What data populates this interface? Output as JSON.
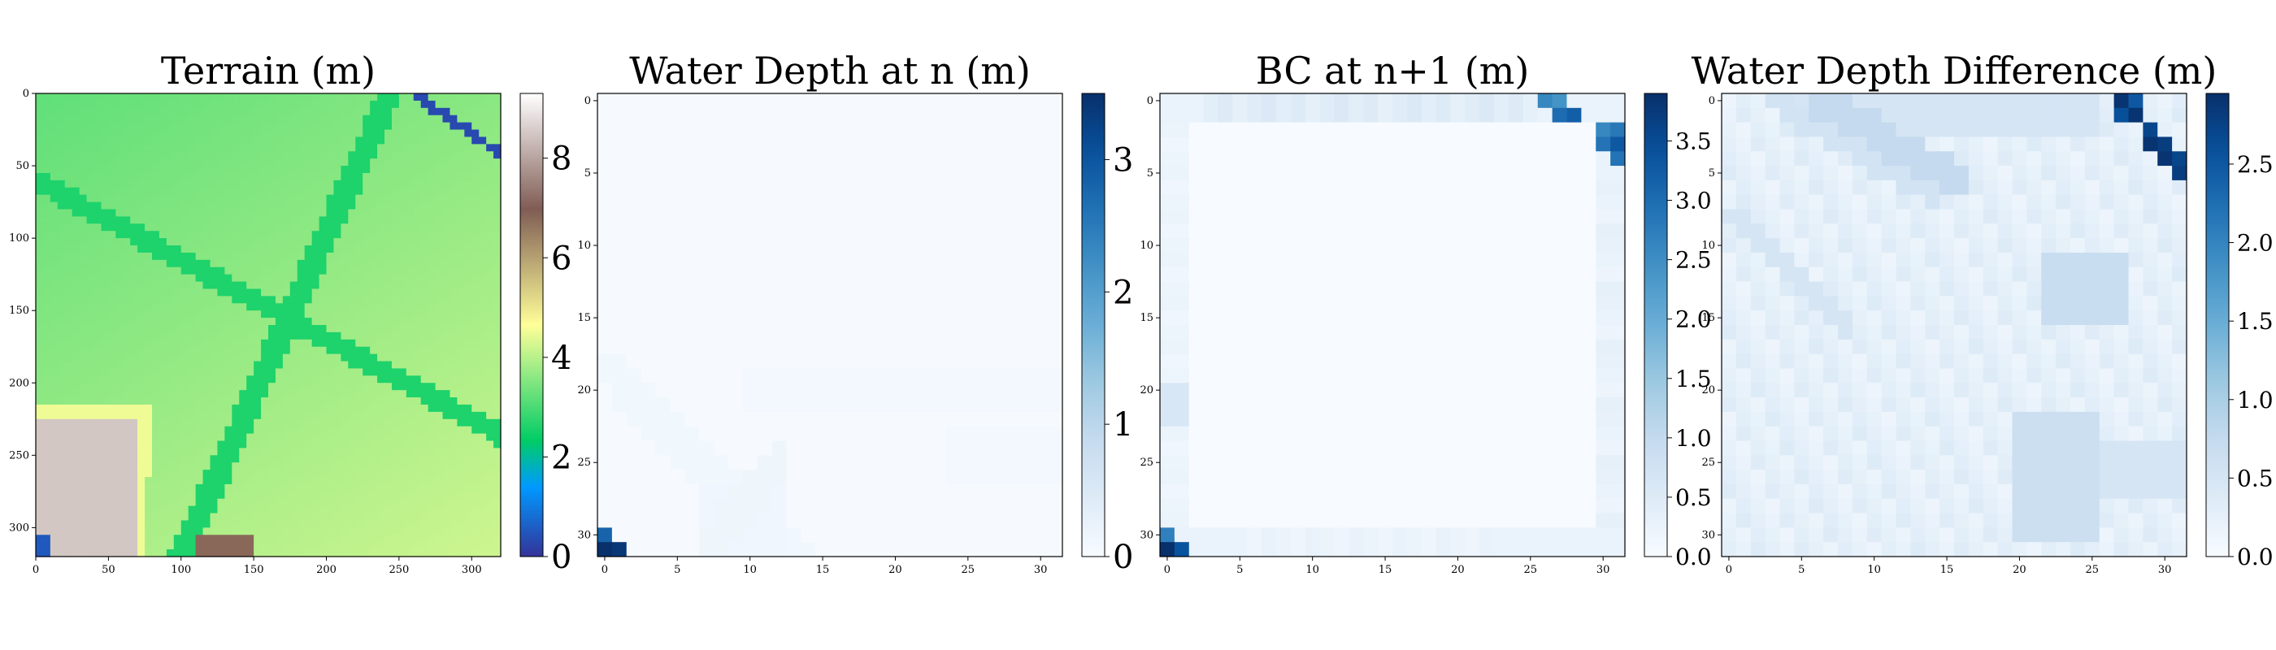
{
  "chart_data": [
    {
      "type": "heatmap",
      "title": "Terrain (m)",
      "colormap": "terrain",
      "grid": "off",
      "x_ticks": [
        "0",
        "50",
        "100",
        "150",
        "200",
        "250",
        "300"
      ],
      "y_ticks": [
        "0",
        "50",
        "100",
        "150",
        "200",
        "250",
        "300"
      ],
      "x_range": [
        0,
        320
      ],
      "y_range": [
        0,
        320
      ],
      "colorbar": {
        "ticks": [
          "0",
          "2",
          "4",
          "6",
          "8"
        ],
        "range": [
          0,
          9.3
        ]
      },
      "features": {
        "base_elevation": 3.2,
        "roads_elevation": 2.6,
        "high_southeast": 4.3,
        "building_southwest_top": 8.5,
        "water_channel_northeast": 0.3
      }
    },
    {
      "type": "heatmap",
      "title": "Water Depth at n (m)",
      "colormap": "Blues",
      "grid": "off",
      "x_ticks": [
        "0",
        "5",
        "10",
        "15",
        "20",
        "25",
        "30"
      ],
      "y_ticks": [
        "0",
        "5",
        "10",
        "15",
        "20",
        "25",
        "30"
      ],
      "grid_size": 32,
      "colorbar": {
        "ticks": [
          "0",
          "1",
          "2",
          "3"
        ],
        "range": [
          0,
          3.5
        ]
      },
      "high_cells": [
        {
          "row": 30,
          "col": 0,
          "value": 2.8
        },
        {
          "row": 31,
          "col": 0,
          "value": 3.5
        },
        {
          "row": 31,
          "col": 1,
          "value": 3.4
        }
      ],
      "background_value": 0.02
    },
    {
      "type": "heatmap",
      "title": "BC at n+1 (m)",
      "colormap": "Blues",
      "grid": "off",
      "x_ticks": [
        "0",
        "5",
        "10",
        "15",
        "20",
        "25",
        "30"
      ],
      "y_ticks": [
        "0",
        "5",
        "10",
        "15",
        "20",
        "25",
        "30"
      ],
      "grid_size": 32,
      "colorbar": {
        "ticks": [
          "0.0",
          "0.5",
          "1.0",
          "1.5",
          "2.0",
          "2.5",
          "3.0",
          "3.5"
        ],
        "range": [
          0,
          3.9
        ]
      },
      "high_cells": [
        {
          "row": 0,
          "col": 26,
          "value": 2.6
        },
        {
          "row": 0,
          "col": 27,
          "value": 2.4
        },
        {
          "row": 1,
          "col": 27,
          "value": 3.0
        },
        {
          "row": 1,
          "col": 28,
          "value": 3.2
        },
        {
          "row": 2,
          "col": 30,
          "value": 2.6
        },
        {
          "row": 2,
          "col": 31,
          "value": 2.8
        },
        {
          "row": 3,
          "col": 30,
          "value": 2.9
        },
        {
          "row": 3,
          "col": 31,
          "value": 3.3
        },
        {
          "row": 4,
          "col": 31,
          "value": 2.9
        },
        {
          "row": 30,
          "col": 0,
          "value": 2.7
        },
        {
          "row": 31,
          "col": 0,
          "value": 3.9
        },
        {
          "row": 31,
          "col": 1,
          "value": 3.4
        }
      ],
      "boundary_value": 0.25,
      "interior_value": 0.0
    },
    {
      "type": "heatmap",
      "title": "Water Depth Difference (m)",
      "colormap": "Blues",
      "grid": "off",
      "x_ticks": [
        "0",
        "5",
        "10",
        "15",
        "20",
        "25",
        "30"
      ],
      "y_ticks": [
        "0",
        "5",
        "10",
        "15",
        "20",
        "25",
        "30"
      ],
      "grid_size": 32,
      "colorbar": {
        "ticks": [
          "0.0",
          "0.5",
          "1.0",
          "1.5",
          "2.0",
          "2.5"
        ],
        "range": [
          0,
          2.95
        ]
      },
      "high_cells": [
        {
          "row": 0,
          "col": 27,
          "value": 2.9
        },
        {
          "row": 0,
          "col": 28,
          "value": 2.5
        },
        {
          "row": 1,
          "col": 27,
          "value": 2.6
        },
        {
          "row": 1,
          "col": 28,
          "value": 2.9
        },
        {
          "row": 2,
          "col": 29,
          "value": 2.7
        },
        {
          "row": 3,
          "col": 29,
          "value": 2.9
        },
        {
          "row": 3,
          "col": 30,
          "value": 2.8
        },
        {
          "row": 4,
          "col": 30,
          "value": 2.9
        },
        {
          "row": 4,
          "col": 31,
          "value": 2.7
        },
        {
          "row": 5,
          "col": 31,
          "value": 2.8
        }
      ],
      "background_value": 0.15
    }
  ]
}
